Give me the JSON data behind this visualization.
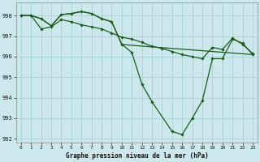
{
  "title": "Graphe pression niveau de la mer (hPa)",
  "background_color": "#cce8ec",
  "grid_color": "#add4d8",
  "line_color": "#1a5c1a",
  "series1": {
    "x": [
      0,
      1,
      2,
      3,
      4,
      5,
      6,
      7,
      8,
      9,
      10,
      11,
      12,
      13,
      15,
      16,
      17,
      18,
      19,
      20,
      21,
      22,
      23
    ],
    "y": [
      998.0,
      998.0,
      997.85,
      997.5,
      998.05,
      998.1,
      998.2,
      998.1,
      997.85,
      997.7,
      996.6,
      996.2,
      994.65,
      993.8,
      992.35,
      992.2,
      993.0,
      993.85,
      995.9,
      995.9,
      996.85,
      996.65,
      996.1
    ]
  },
  "series2": {
    "x": [
      0,
      1,
      2,
      3,
      4,
      5,
      6,
      7,
      8,
      9,
      10,
      11,
      12,
      13,
      14,
      15,
      16,
      17,
      18,
      19,
      20,
      21,
      22,
      23
    ],
    "y": [
      998.0,
      998.0,
      997.35,
      997.45,
      997.8,
      997.7,
      997.55,
      997.45,
      997.35,
      997.15,
      996.95,
      996.85,
      996.7,
      996.5,
      996.4,
      996.25,
      996.1,
      996.0,
      995.9,
      996.45,
      996.35,
      996.9,
      996.6,
      996.15
    ]
  },
  "series3": {
    "x": [
      0,
      1,
      2,
      3,
      4,
      5,
      6,
      7,
      8,
      9,
      10,
      11,
      23
    ],
    "y": [
      998.0,
      998.0,
      997.85,
      997.5,
      998.05,
      998.1,
      998.2,
      998.1,
      997.85,
      997.7,
      996.6,
      996.55,
      996.1
    ]
  },
  "ylim": [
    991.8,
    998.65
  ],
  "xlim": [
    -0.5,
    23.5
  ],
  "yticks": [
    992,
    993,
    994,
    995,
    996,
    997,
    998
  ],
  "xticks": [
    0,
    1,
    2,
    3,
    4,
    5,
    6,
    7,
    8,
    9,
    10,
    11,
    12,
    13,
    14,
    15,
    16,
    17,
    18,
    19,
    20,
    21,
    22,
    23
  ]
}
